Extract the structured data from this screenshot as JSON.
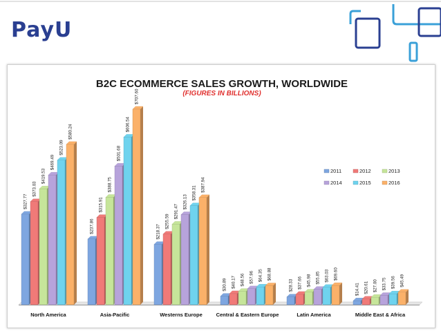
{
  "brand": {
    "logo_text": "PayU",
    "accent": "#2a3f91",
    "deco_color": "#3aa0d8"
  },
  "chart_data": {
    "type": "bar",
    "title": "B2C ECOMMERCE SALES GROWTH, WORLDWIDE",
    "subtitle": "(FIGURES IN BILLIONS)",
    "categories": [
      "North America",
      "Asia-Pacific",
      "Westerns Europe",
      "Central & Eastern Europe",
      "Latin America",
      "Middle East & Africa"
    ],
    "series": [
      {
        "name": "2011",
        "color": "#7ea6e0",
        "values": [
          327.77,
          237.86,
          218.37,
          30.89,
          28.33,
          14.41
        ],
        "labels": [
          "$327.77",
          "$237.86",
          "$218.37",
          "$30.89",
          "$28.33",
          "$14.41"
        ]
      },
      {
        "name": "2012",
        "color": "#f07a78",
        "values": [
          373.03,
          315.91,
          255.59,
          40.17,
          37.66,
          20.61
        ],
        "labels": [
          "$373.03",
          "$315.91",
          "$255.59",
          "$40.17",
          "$37.66",
          "$20.61"
        ]
      },
      {
        "name": "2013",
        "color": "#c6e59a",
        "values": [
          419.53,
          388.75,
          291.47,
          48.56,
          45.98,
          27.0
        ],
        "labels": [
          "$419.53",
          "$388.75",
          "$291.47",
          "$48.56",
          "$45.98",
          "$27.00"
        ]
      },
      {
        "name": "2014",
        "color": "#b7a3db",
        "values": [
          469.49,
          501.68,
          326.13,
          57.96,
          55.85,
          33.75
        ],
        "labels": [
          "$469.49",
          "$501.68",
          "$326.13",
          "$57.96",
          "$55.85",
          "$33.75"
        ]
      },
      {
        "name": "2015",
        "color": "#6fd3ee",
        "values": [
          523.09,
          606.54,
          358.31,
          64.35,
          63.03,
          39.56
        ],
        "labels": [
          "$523.09",
          "$606.54",
          "$358.31",
          "$64.35",
          "$63.03",
          "$39.56"
        ]
      },
      {
        "name": "2016",
        "color": "#fbb169",
        "values": [
          580.24,
          707.6,
          387.94,
          68.88,
          69.6,
          45.49
        ],
        "labels": [
          "$580.24",
          "$707.60",
          "$387.94",
          "$68.88",
          "$69.60",
          "$45.49"
        ]
      }
    ],
    "ylim": [
      0,
      720
    ],
    "grid": false,
    "legend_position": "right",
    "bar_style": "3d"
  }
}
